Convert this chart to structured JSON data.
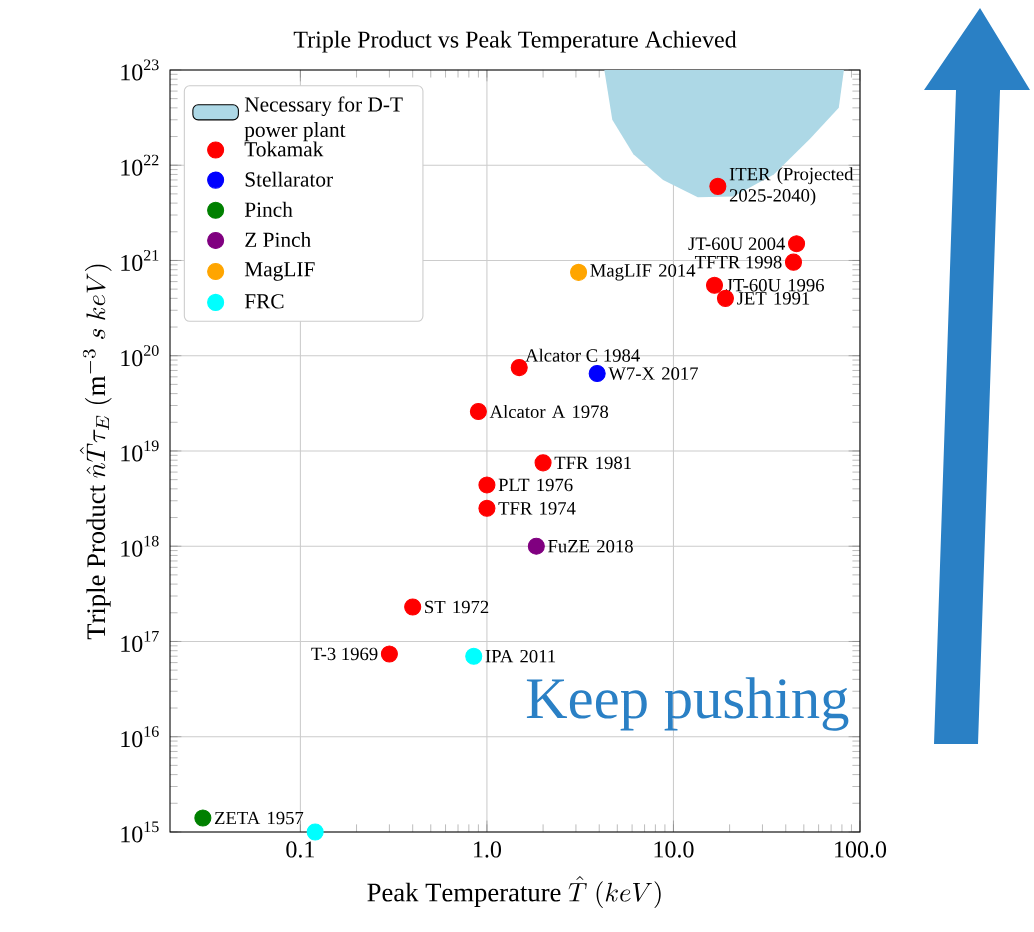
{
  "chart_data": {
    "type": "scatter",
    "title": "Triple Product vs Peak Temperature Achieved",
    "xlabel": "\\mathrm{Peak\\ Temperature}\\ \\hat{T}\\ (keV)",
    "ylabel": "\\mathrm{Triple\\ Product}\\ \\hat{n}\\hat{T}\\tau_E\\ (\\mathrm{m}^{-3}\\ s\\ keV)",
    "log": "xy",
    "grid": true,
    "legend": "top left",
    "marker": "circle",
    "xlim": [
      0.02,
      100
    ],
    "ylim": [
      1000000000000000.0,
      1e+23
    ],
    "xticks": [
      {
        "value": 0.1,
        "label": "0.1"
      },
      {
        "value": 1,
        "label": "1.0"
      },
      {
        "value": 10,
        "label": "10.0"
      },
      {
        "value": 100,
        "label": "100.0"
      }
    ],
    "yticks": [
      {
        "value": 1000000000000000.0,
        "label": "10$^{15}$"
      },
      {
        "value": 1e+16,
        "label": "10$^{16}$"
      },
      {
        "value": 1e+17,
        "label": "10$^{17}$"
      },
      {
        "value": 1e+18,
        "label": "10$^{18}$"
      },
      {
        "value": 1e+19,
        "label": "10$^{19}$"
      },
      {
        "value": 1e+20,
        "label": "10$^{20}$"
      },
      {
        "value": 1e+21,
        "label": "10$^{21}$"
      },
      {
        "value": 1e+22,
        "label": "10$^{22}$"
      },
      {
        "value": 1e+23,
        "label": "10$^{23}$"
      }
    ],
    "series": [
      {
        "name": "Necessary for D-T power plant",
        "type": "area",
        "marker": "none",
        "color": "#add8e6",
        "x": [
          4.26,
          4.7,
          6.1,
          8.8,
          13.5,
          21,
          34.5,
          54,
          77,
          82
        ],
        "values": [
          1e+23,
          3e+22,
          1.3e+22,
          7e+21,
          4.6e+21,
          4.7e+21,
          8e+21,
          1.9e+22,
          4e+22,
          1e+23
        ]
      },
      {
        "name": "Tokamak",
        "color": "#ff0000",
        "x": [
          17.3,
          45.7,
          44,
          16.6,
          19,
          1.49,
          0.9,
          2,
          1,
          1,
          0.4,
          0.3
        ],
        "values": [
          6e+21,
          1.5e+21,
          9.6e+20,
          5.5e+20,
          4e+20,
          7.5e+19,
          2.6e+19,
          7.5e+18,
          4.4e+18,
          2.5e+18,
          2.3e+17,
          7.4e+16
        ]
      },
      {
        "name": "Stellarator",
        "color": "#0000ff",
        "x": [
          3.9
        ],
        "values": [
          6.5e+19
        ]
      },
      {
        "name": "Pinch",
        "color": "#008000",
        "x": [
          0.03
        ],
        "values": [
          1400000000000000.0
        ]
      },
      {
        "name": "Z Pinch",
        "color": "#800080",
        "x": [
          1.84
        ],
        "values": [
          1e+18
        ]
      },
      {
        "name": "MagLIF",
        "color": "#ffa500",
        "x": [
          3.1
        ],
        "values": [
          7.5e+20
        ]
      },
      {
        "name": "FRC",
        "color": "#00ffff",
        "x": [
          0.85,
          0.12
        ],
        "values": [
          7e+16,
          1000000000000000.0
        ]
      }
    ],
    "annotations": [
      {
        "text": "ITER (Projected 2025-2040)",
        "x": 17.3,
        "y": 6e+21
      },
      {
        "text": "JT-60U 2004",
        "x": 45.7,
        "y": 1.5e+21
      },
      {
        "text": "TFTR 1998",
        "x": 44,
        "y": 9.6e+20
      },
      {
        "text": "JT-60U 1996",
        "x": 16.6,
        "y": 5.5e+20
      },
      {
        "text": "JET 1991",
        "x": 19,
        "y": 4e+20
      },
      {
        "text": "Alcator C 1984",
        "x": 1.49,
        "y": 7.5e+19
      },
      {
        "text": "Alcator A 1978",
        "x": 0.9,
        "y": 2.6e+19
      },
      {
        "text": "TFR 1981",
        "x": 2,
        "y": 7.5e+18
      },
      {
        "text": "PLT 1976",
        "x": 1,
        "y": 4.4e+18
      },
      {
        "text": "TFR 1974",
        "x": 1,
        "y": 2.5e+18
      },
      {
        "text": "ST 1972",
        "x": 0.4,
        "y": 2.3e+17
      },
      {
        "text": "T-3 1969",
        "x": 0.3,
        "y": 7.4e+16
      },
      {
        "text": "W7-X 2017",
        "x": 3.9,
        "y": 6.5e+19
      },
      {
        "text": "ZETA 1957",
        "x": 0.03,
        "y": 1400000000000000.0
      },
      {
        "text": "FuZE 2018",
        "x": 1.84,
        "y": 1e+18
      },
      {
        "text": "MagLIF 2014",
        "x": 3.1,
        "y": 7.5e+20
      },
      {
        "text": "IPA 2011",
        "x": 0.85,
        "y": 7e+16
      },
      "Keep pushing"
    ]
  }
}
